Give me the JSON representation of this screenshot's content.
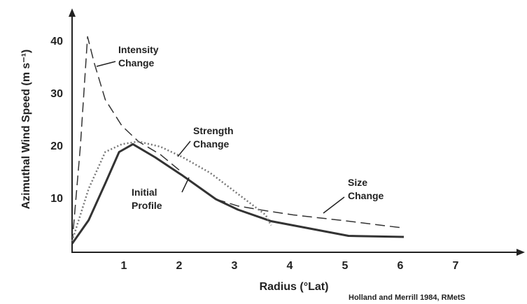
{
  "chart_data": {
    "type": "line",
    "xlabel": "Radius (°Lat)",
    "ylabel": "Azimuthal Wind Speed (m s⁻¹)",
    "source": "Holland and Merrill 1984, RMetS",
    "xlim": [
      0,
      8.2
    ],
    "ylim": [
      0,
      46
    ],
    "xticks": [
      1,
      2,
      3,
      4,
      5,
      6,
      7
    ],
    "yticks": [
      10,
      20,
      30,
      40
    ],
    "grid": false,
    "series": [
      {
        "name": "Initial Profile",
        "color": "#333333",
        "style": "solid",
        "x": [
          0,
          0.3,
          0.6,
          0.85,
          1.1,
          1.5,
          2,
          2.6,
          3,
          3.6,
          4,
          5,
          6
        ],
        "values": [
          1.5,
          6,
          13,
          19,
          20.5,
          18,
          14.5,
          10,
          8,
          5.8,
          5,
          3,
          2.8
        ]
      },
      {
        "name": "Size Change",
        "color": "#333333",
        "style": "dashed",
        "x": [
          2.6,
          3,
          3.5,
          4,
          5,
          6
        ],
        "values": [
          10,
          8.7,
          7.8,
          7,
          5.8,
          4.5
        ]
      },
      {
        "name": "Intensity Change",
        "color": "#333333",
        "style": "dashed",
        "x": [
          0,
          0.15,
          0.28,
          0.4,
          0.6,
          0.9,
          1.2,
          1.6,
          2
        ],
        "values": [
          1.5,
          20,
          41,
          36,
          29,
          24,
          21,
          18.5,
          15
        ]
      },
      {
        "name": "Strength Change",
        "color": "#777777",
        "style": "dotted",
        "x": [
          0,
          0.3,
          0.6,
          0.9,
          1.2,
          1.6,
          2,
          2.5,
          3,
          3.5,
          3.6
        ],
        "values": [
          2,
          12,
          19,
          20.5,
          21,
          20,
          18,
          15,
          11,
          7,
          5
        ]
      }
    ]
  }
}
